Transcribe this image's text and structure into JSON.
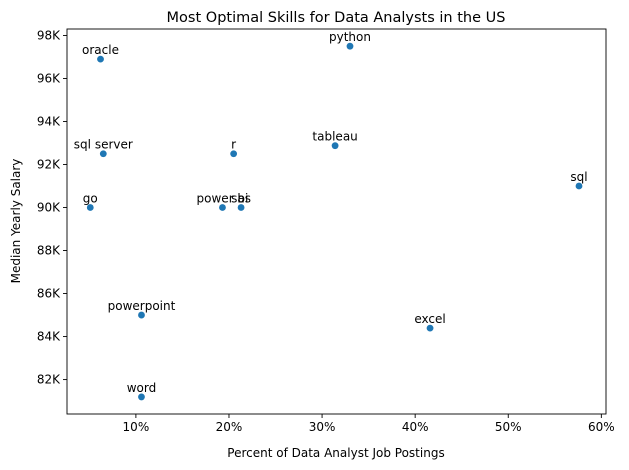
{
  "chart_data": {
    "type": "scatter",
    "title": "Most Optimal Skills for Data Analysts in the US",
    "xlabel": "Percent of Data Analyst Job Postings",
    "ylabel": "Median Yearly Salary",
    "xlim": [
      2.6,
      60.5
    ],
    "ylim": [
      80400,
      98300
    ],
    "grid": false,
    "xticks": [
      {
        "value": 10,
        "label": "10%"
      },
      {
        "value": 20,
        "label": "20%"
      },
      {
        "value": 30,
        "label": "30%"
      },
      {
        "value": 40,
        "label": "40%"
      },
      {
        "value": 50,
        "label": "50%"
      },
      {
        "value": 60,
        "label": "60%"
      }
    ],
    "yticks": [
      {
        "value": 82000,
        "label": "82K"
      },
      {
        "value": 84000,
        "label": "84K"
      },
      {
        "value": 86000,
        "label": "86K"
      },
      {
        "value": 88000,
        "label": "88K"
      },
      {
        "value": 90000,
        "label": "90K"
      },
      {
        "value": 92000,
        "label": "92K"
      },
      {
        "value": 94000,
        "label": "94K"
      },
      {
        "value": 96000,
        "label": "96K"
      },
      {
        "value": 98000,
        "label": "98K"
      }
    ],
    "points": [
      {
        "label": "oracle",
        "x": 6.2,
        "y": 96900
      },
      {
        "label": "python",
        "x": 33.0,
        "y": 97500
      },
      {
        "label": "sql server",
        "x": 6.5,
        "y": 92500
      },
      {
        "label": "r",
        "x": 20.5,
        "y": 92500
      },
      {
        "label": "tableau",
        "x": 31.4,
        "y": 92875
      },
      {
        "label": "sql",
        "x": 57.6,
        "y": 91000
      },
      {
        "label": "go",
        "x": 5.1,
        "y": 90000
      },
      {
        "label": "power bi",
        "x": 19.3,
        "y": 90000
      },
      {
        "label": "sas",
        "x": 21.3,
        "y": 90000
      },
      {
        "label": "powerpoint",
        "x": 10.6,
        "y": 85000
      },
      {
        "label": "excel",
        "x": 41.6,
        "y": 84392
      },
      {
        "label": "word",
        "x": 10.6,
        "y": 81194
      }
    ],
    "point_color": "#1f77b4"
  }
}
